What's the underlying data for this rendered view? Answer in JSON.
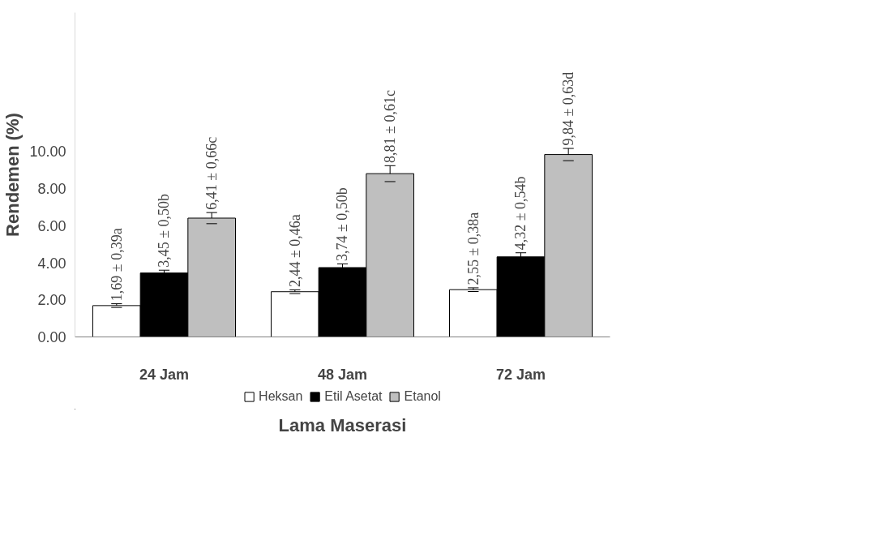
{
  "chart_data": {
    "type": "bar",
    "categories": [
      "24 Jam",
      "48 Jam",
      "72 Jam"
    ],
    "xlabel": "Lama Maserasi",
    "ylabel": "Rendemen (%)",
    "series": [
      {
        "name": "Heksan",
        "color": "#ffffff",
        "values": [
          1.69,
          2.44,
          2.55
        ],
        "errors": [
          0.1,
          0.1,
          0.1
        ],
        "value_labels": [
          "1,69 ± 0,39a",
          "2,44 ± 0,46a",
          "2,55 ± 0,38a"
        ]
      },
      {
        "name": "Etil Asetat",
        "color": "#000000",
        "values": [
          3.45,
          3.74,
          4.32
        ],
        "errors": [
          0.15,
          0.2,
          0.22
        ],
        "value_labels": [
          "3,45 ± 0,50b",
          "3,74 ± 0,50b",
          "4,32 ± 0,54b"
        ]
      },
      {
        "name": "Etanol",
        "color": "#bfbfbf",
        "values": [
          6.41,
          8.81,
          9.84
        ],
        "errors": [
          0.3,
          0.43,
          0.33
        ],
        "value_labels": [
          "6,41 ± 0,66c",
          "8,81 ± 0,61c",
          "9,84 ± 0,63d"
        ]
      }
    ],
    "ylim": [
      0,
      17.5
    ],
    "yticks": [
      {
        "value": 0,
        "label": "0.00"
      },
      {
        "value": 2,
        "label": "2.00"
      },
      {
        "value": 4,
        "label": "4.00"
      },
      {
        "value": 6,
        "label": "6.00"
      },
      {
        "value": 8,
        "label": "8.00"
      },
      {
        "value": 10,
        "label": "10.00"
      }
    ],
    "grid": false,
    "legend": "bottom"
  }
}
